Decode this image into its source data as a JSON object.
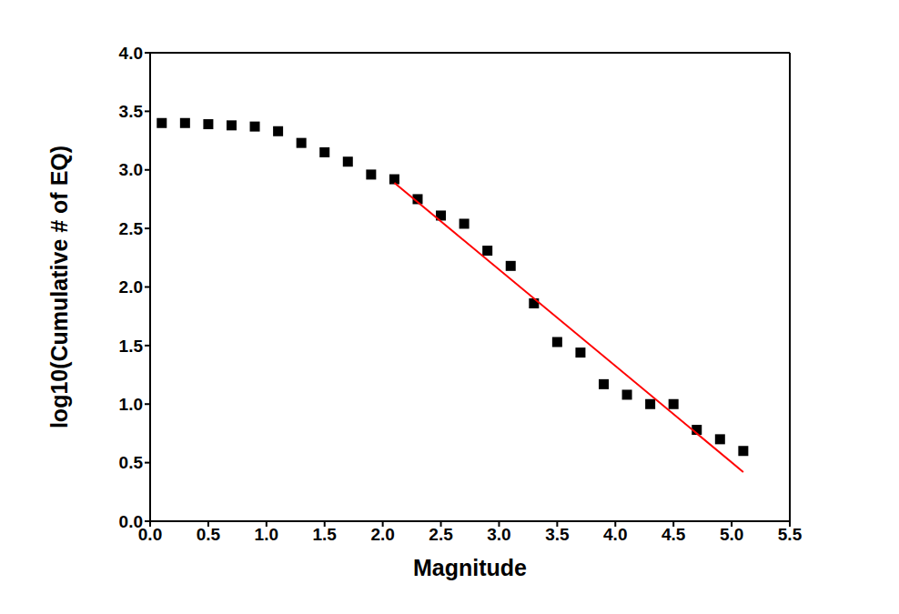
{
  "chart_data": {
    "type": "scatter",
    "x_label": "Magnitude",
    "y_label": "log10(Cumulative # of EQ)",
    "xlim": [
      0,
      5.5
    ],
    "ylim": [
      0,
      4
    ],
    "xticks": [
      {
        "value": 0,
        "label": "0.0"
      },
      {
        "value": 0.5,
        "label": "0.5"
      },
      {
        "value": 1,
        "label": "1.0"
      },
      {
        "value": 1.5,
        "label": "1.5"
      },
      {
        "value": 2,
        "label": "2.0"
      },
      {
        "value": 2.5,
        "label": "2.5"
      },
      {
        "value": 3,
        "label": "3.0"
      },
      {
        "value": 3.5,
        "label": "3.5"
      },
      {
        "value": 4,
        "label": "4.0"
      },
      {
        "value": 4.5,
        "label": "4.5"
      },
      {
        "value": 5,
        "label": "5.0"
      },
      {
        "value": 5.5,
        "label": "5.5"
      }
    ],
    "yticks": [
      {
        "value": 0,
        "label": "0.0"
      },
      {
        "value": 0.5,
        "label": "0.5"
      },
      {
        "value": 1,
        "label": "1.0"
      },
      {
        "value": 1.5,
        "label": "1.5"
      },
      {
        "value": 2,
        "label": "2.0"
      },
      {
        "value": 2.5,
        "label": "2.5"
      },
      {
        "value": 3,
        "label": "3.0"
      },
      {
        "value": 3.5,
        "label": "3.5"
      },
      {
        "value": 4,
        "label": "4.0"
      }
    ],
    "grid": false,
    "series": [
      {
        "type": "scatter",
        "marker": "square",
        "color": "#000000",
        "x": [
          0.1,
          0.3,
          0.5,
          0.7,
          0.9,
          1.1,
          1.3,
          1.5,
          1.7,
          1.9,
          2.1,
          2.3,
          2.5,
          2.7,
          2.9,
          3.1,
          3.3,
          3.5,
          3.7,
          3.9,
          4.1,
          4.3,
          4.5,
          4.7,
          4.9,
          5.1
        ],
        "values": [
          3.4,
          3.4,
          3.39,
          3.38,
          3.37,
          3.33,
          3.23,
          3.15,
          3.07,
          2.96,
          2.92,
          2.75,
          2.61,
          2.54,
          2.31,
          2.18,
          1.86,
          1.53,
          1.44,
          1.17,
          1.08,
          1.0,
          1.0,
          0.78,
          0.7,
          0.6
        ]
      },
      {
        "type": "line",
        "color": "#ff0000",
        "x": [
          2.1,
          5.1
        ],
        "values": [
          2.89,
          0.42
        ]
      }
    ]
  }
}
